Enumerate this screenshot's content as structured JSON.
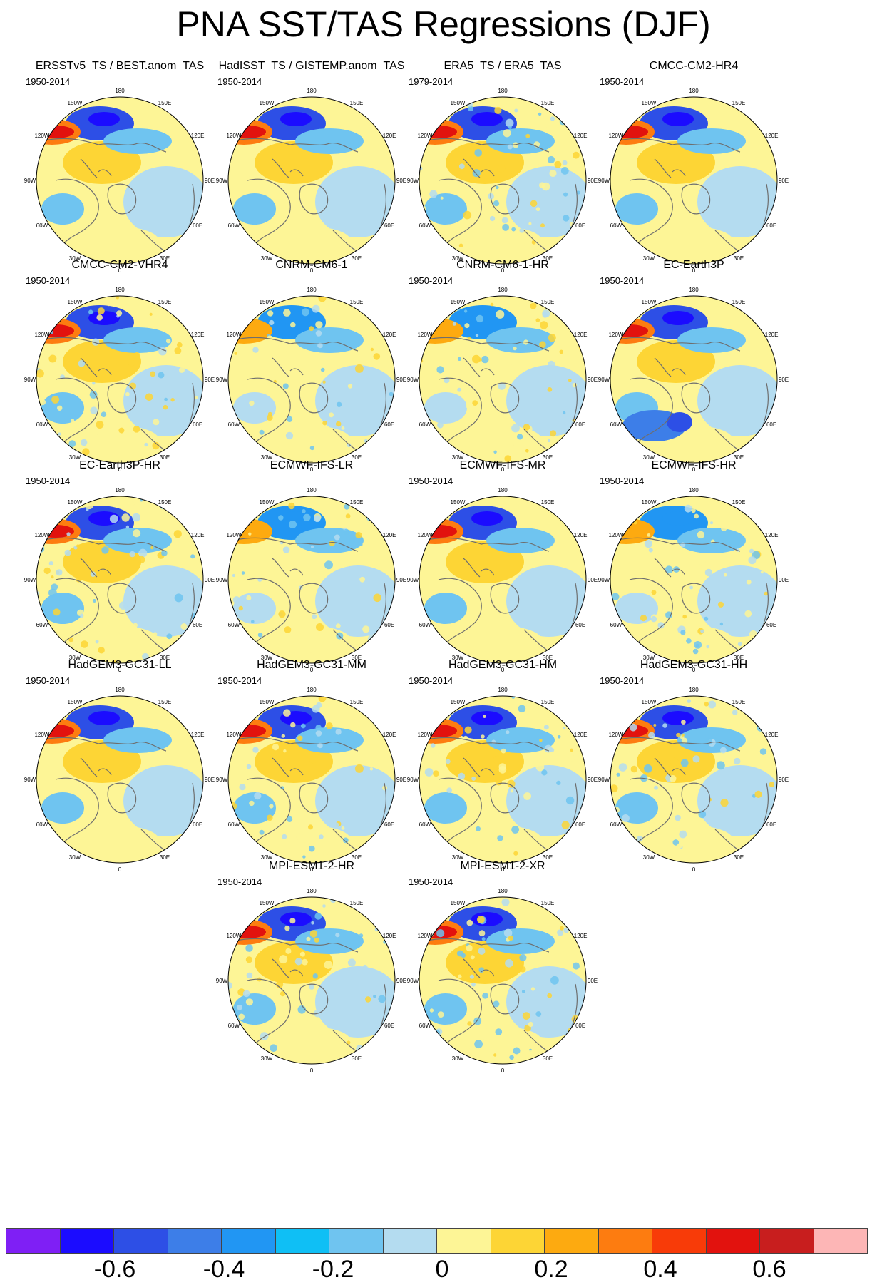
{
  "title": "PNA SST/TAS Regressions (DJF)",
  "colors": {
    "palette": [
      "#7f1ff5",
      "#1b0cff",
      "#2d4fe6",
      "#3d7ee8",
      "#2196f3",
      "#0fbff5",
      "#6fc4f0",
      "#b4dcf0",
      "#fdf596",
      "#fdd535",
      "#fdaa10",
      "#fd7c10",
      "#f83b08",
      "#e2120e",
      "#c81e1e",
      "#fdb6b6"
    ],
    "background": "#ffffff",
    "coast": "#6e6e6e"
  },
  "colorbar": {
    "tick_labels": [
      "-0.6",
      "-0.4",
      "-0.2",
      "0",
      "0.2",
      "0.4",
      "0.6"
    ],
    "levels": [
      -0.7,
      -0.6,
      -0.5,
      -0.4,
      -0.3,
      -0.2,
      -0.1,
      0,
      0.1,
      0.2,
      0.3,
      0.4,
      0.5,
      0.6,
      0.7
    ]
  },
  "map_labels": [
    "180",
    "150W",
    "150E",
    "120W",
    "120E",
    "90W",
    "90E",
    "60W",
    "60E",
    "30W",
    "30E",
    "0"
  ],
  "panels": [
    {
      "title": "ERSSTv5_TS / BEST.anom_TAS",
      "period": "1950-2014",
      "style": "obs"
    },
    {
      "title": "HadISST_TS / GISTEMP.anom_TAS",
      "period": "1950-2014",
      "style": "obs"
    },
    {
      "title": "ERA5_TS / ERA5_TAS",
      "period": "1979-2014",
      "style": "noisy"
    },
    {
      "title": "CMCC-CM2-HR4",
      "period": "1950-2014",
      "style": "obs"
    },
    {
      "title": "CMCC-CM2-VHR4",
      "period": "1950-2014",
      "style": "noisy"
    },
    {
      "title": "CNRM-CM6-1",
      "period": "",
      "style": "weak"
    },
    {
      "title": "CNRM-CM6-1-HR",
      "period": "1950-2014",
      "style": "weak"
    },
    {
      "title": "EC-Earth3P",
      "period": "1950-2014",
      "style": "cold"
    },
    {
      "title": "EC-Earth3P-HR",
      "period": "1950-2014",
      "style": "noisy"
    },
    {
      "title": "ECMWF-IFS-LR",
      "period": "",
      "style": "weak"
    },
    {
      "title": "ECMWF-IFS-MR",
      "period": "1950-2014",
      "style": "obs"
    },
    {
      "title": "ECMWF-IFS-HR",
      "period": "1950-2014",
      "style": "weak"
    },
    {
      "title": "HadGEM3-GC31-LL",
      "period": "1950-2014",
      "style": "obs"
    },
    {
      "title": "HadGEM3-GC31-MM",
      "period": "1950-2014",
      "style": "noisy"
    },
    {
      "title": "HadGEM3-GC31-HM",
      "period": "1950-2014",
      "style": "noisy"
    },
    {
      "title": "HadGEM3-GC31-HH",
      "period": "1950-2014",
      "style": "noisy"
    },
    {
      "title": "MPI-ESM1-2-HR",
      "period": "1950-2014",
      "style": "noisy"
    },
    {
      "title": "MPI-ESM1-2-XR",
      "period": "1950-2014",
      "style": "noisy"
    }
  ]
}
